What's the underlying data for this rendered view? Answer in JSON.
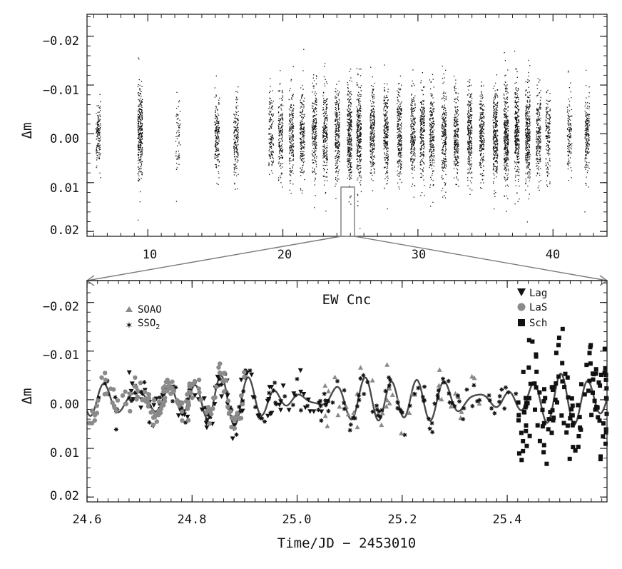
{
  "chart_data": [
    {
      "type": "scatter",
      "panel": "overview",
      "ylabel": "Δm",
      "xlabel": "",
      "xlim": [
        5.5,
        44
      ],
      "ylim": [
        0.021,
        -0.0245
      ],
      "y_inverted": true,
      "xticks": [
        10,
        20,
        30,
        40
      ],
      "xtick_labels": [
        "10",
        "20",
        "30",
        "40"
      ],
      "yticks": [
        -0.02,
        -0.01,
        0.0,
        0.01,
        0.02
      ],
      "ytick_labels": [
        "−0.02",
        "−0.01",
        "0.00",
        "0.01",
        "0.02"
      ],
      "observing_nights": [
        {
          "x": 6.3,
          "n": 140,
          "spread": 0.008
        },
        {
          "x": 9.4,
          "n": 300,
          "spread": 0.011
        },
        {
          "x": 12.2,
          "n": 60,
          "spread": 0.01
        },
        {
          "x": 15.1,
          "n": 170,
          "spread": 0.01
        },
        {
          "x": 16.5,
          "n": 160,
          "spread": 0.01
        },
        {
          "x": 19.1,
          "n": 140,
          "spread": 0.011
        },
        {
          "x": 19.8,
          "n": 180,
          "spread": 0.011
        },
        {
          "x": 20.6,
          "n": 200,
          "spread": 0.011
        },
        {
          "x": 21.4,
          "n": 200,
          "spread": 0.011
        },
        {
          "x": 22.3,
          "n": 220,
          "spread": 0.011
        },
        {
          "x": 23.1,
          "n": 220,
          "spread": 0.011
        },
        {
          "x": 24.0,
          "n": 240,
          "spread": 0.011
        },
        {
          "x": 24.9,
          "n": 300,
          "spread": 0.012
        },
        {
          "x": 25.6,
          "n": 300,
          "spread": 0.012
        },
        {
          "x": 26.6,
          "n": 240,
          "spread": 0.011
        },
        {
          "x": 27.6,
          "n": 240,
          "spread": 0.011
        },
        {
          "x": 28.6,
          "n": 240,
          "spread": 0.011
        },
        {
          "x": 29.6,
          "n": 220,
          "spread": 0.011
        },
        {
          "x": 30.3,
          "n": 220,
          "spread": 0.011
        },
        {
          "x": 31.0,
          "n": 220,
          "spread": 0.011
        },
        {
          "x": 31.9,
          "n": 240,
          "spread": 0.011
        },
        {
          "x": 32.8,
          "n": 240,
          "spread": 0.011
        },
        {
          "x": 33.8,
          "n": 260,
          "spread": 0.011
        },
        {
          "x": 34.7,
          "n": 240,
          "spread": 0.011
        },
        {
          "x": 35.7,
          "n": 300,
          "spread": 0.012
        },
        {
          "x": 36.5,
          "n": 320,
          "spread": 0.012
        },
        {
          "x": 37.3,
          "n": 300,
          "spread": 0.012
        },
        {
          "x": 38.1,
          "n": 300,
          "spread": 0.012
        },
        {
          "x": 38.9,
          "n": 200,
          "spread": 0.011
        },
        {
          "x": 39.6,
          "n": 160,
          "spread": 0.011
        },
        {
          "x": 41.2,
          "n": 120,
          "spread": 0.01
        },
        {
          "x": 42.5,
          "n": 180,
          "spread": 0.01
        }
      ],
      "zoom_window": [
        24.6,
        25.6
      ]
    },
    {
      "type": "scatter",
      "panel": "zoom",
      "title": "EW Cnc",
      "ylabel": "Δm",
      "xlabel": "Time/JD − 2453010",
      "xlim": [
        24.6,
        25.59
      ],
      "ylim": [
        0.021,
        -0.0245
      ],
      "y_inverted": true,
      "xticks": [
        24.6,
        24.8,
        25.0,
        25.2,
        25.4
      ],
      "xtick_labels": [
        "24.6",
        "24.8",
        "25.0",
        "25.2",
        "25.4"
      ],
      "yticks": [
        -0.02,
        -0.01,
        0.0,
        0.01,
        0.02
      ],
      "ytick_labels": [
        "−0.02",
        "−0.01",
        "0.00",
        "0.01",
        "0.02"
      ],
      "series": [
        {
          "name": "SOAO",
          "marker": "triangle-up",
          "color": "#8a8a8a",
          "x_range": [
            25.05,
            25.35
          ],
          "n": 40
        },
        {
          "name": "SSO₂",
          "marker": "star",
          "color": "#111111",
          "x_range": [
            24.62,
            25.42
          ],
          "n": 160
        },
        {
          "name": "Lag",
          "marker": "triangle-down",
          "color": "#111111",
          "x_range": [
            24.68,
            25.07
          ],
          "n": 80
        },
        {
          "name": "LaS",
          "marker": "circle",
          "color": "#8a8a8a",
          "x_range": [
            24.6,
            24.9
          ],
          "n": 150
        },
        {
          "name": "Sch",
          "marker": "square",
          "color": "#111111",
          "x_range": [
            25.42,
            25.59
          ],
          "n": 130
        }
      ],
      "fit_curve": {
        "color": "#4a4a4a",
        "periods": [
          0.0538,
          0.0462,
          0.0731
        ],
        "amplitudes": [
          0.0026,
          0.0019,
          0.0009
        ]
      }
    }
  ],
  "legend": {
    "left": [
      {
        "marker": "triangle-up",
        "label": "SOAO"
      },
      {
        "marker": "star",
        "label": "SSO",
        "sub": "2"
      }
    ],
    "right": [
      {
        "marker": "triangle-down",
        "label": "Lag"
      },
      {
        "marker": "circle",
        "label": "LaS"
      },
      {
        "marker": "square",
        "label": "Sch"
      }
    ]
  },
  "colors": {
    "black": "#111111",
    "gray": "#8a8a8a",
    "fit": "#4a4a4a",
    "frame": "#222222",
    "connector": "#7a7a7a"
  }
}
